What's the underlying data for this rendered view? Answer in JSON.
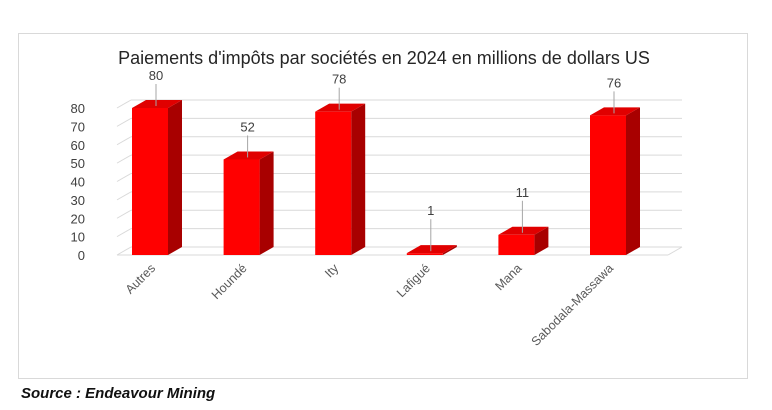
{
  "chart_data": {
    "type": "bar",
    "style": "3d-column",
    "title": "Paiements d'impôts par sociétés en 2024 en millions de dollars US",
    "categories": [
      "Autres",
      "Houndé",
      "Ity",
      "Lafigué",
      "Mana",
      "Sabodala-Massawa"
    ],
    "values": [
      80,
      52,
      78,
      1,
      11,
      76
    ],
    "data_labels": [
      "80",
      "52",
      "78",
      "1",
      "11",
      "76"
    ],
    "yticks": [
      0,
      10,
      20,
      30,
      40,
      50,
      60,
      70,
      80
    ],
    "ylim": [
      0,
      80
    ],
    "xlabel": "",
    "ylabel": "",
    "grid": true,
    "legend": "none",
    "colors": {
      "bar_front": "#ff0000",
      "bar_side": "#a80000",
      "bar_top": "#e00000",
      "grid": "#d9d9d9",
      "leader": "#a6a6a6"
    }
  },
  "source": "Source : Endeavour Mining"
}
